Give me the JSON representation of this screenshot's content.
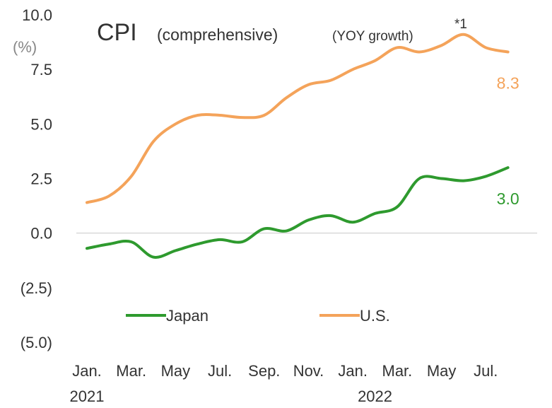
{
  "chart_data": {
    "type": "line",
    "title": "CPI",
    "subtitle": "(comprehensive)",
    "note": "(YOY growth)",
    "footnote_mark": "*1",
    "y_unit": "(%)",
    "categories": [
      "Jan.",
      null,
      "Mar.",
      null,
      "May",
      null,
      "Jul.",
      null,
      "Sep.",
      null,
      "Nov.",
      null,
      "Jan.",
      null,
      "Mar.",
      null,
      "May",
      null,
      "Jul.",
      null
    ],
    "year_labels": [
      "2021",
      "2022"
    ],
    "series": [
      {
        "name": "Japan",
        "color": "#2e9a2e",
        "values": [
          -0.7,
          -0.5,
          -0.4,
          -1.1,
          -0.8,
          -0.5,
          -0.3,
          -0.4,
          0.2,
          0.1,
          0.6,
          0.8,
          0.5,
          0.9,
          1.2,
          2.5,
          2.5,
          2.4,
          2.6,
          3.0
        ],
        "value_labels": [
          null,
          null,
          null,
          null,
          null,
          null,
          null,
          null,
          null,
          null,
          null,
          null,
          null,
          null,
          null,
          null,
          null,
          null,
          null,
          "3.0"
        ]
      },
      {
        "name": "U.S.",
        "color": "#f4a35a",
        "values": [
          1.4,
          1.7,
          2.6,
          4.2,
          5.0,
          5.4,
          5.4,
          5.3,
          5.4,
          6.2,
          6.8,
          7.0,
          7.5,
          7.9,
          8.5,
          8.3,
          8.6,
          9.1,
          8.5,
          8.3
        ],
        "value_labels": [
          null,
          null,
          null,
          null,
          null,
          null,
          null,
          null,
          null,
          null,
          null,
          null,
          null,
          null,
          null,
          null,
          null,
          null,
          null,
          "8.3"
        ]
      }
    ],
    "ylim": [
      -5,
      10
    ],
    "yticks": [
      {
        "value": -5,
        "label": "(5.0)"
      },
      {
        "value": -2.5,
        "label": "(2.5)"
      },
      {
        "value": 0,
        "label": "0.0"
      },
      {
        "value": 2.5,
        "label": "2.5"
      },
      {
        "value": 5,
        "label": "5.0"
      },
      {
        "value": 7.5,
        "label": "7.5"
      },
      {
        "value": 10,
        "label": "10.0"
      }
    ],
    "zero_line": true
  }
}
